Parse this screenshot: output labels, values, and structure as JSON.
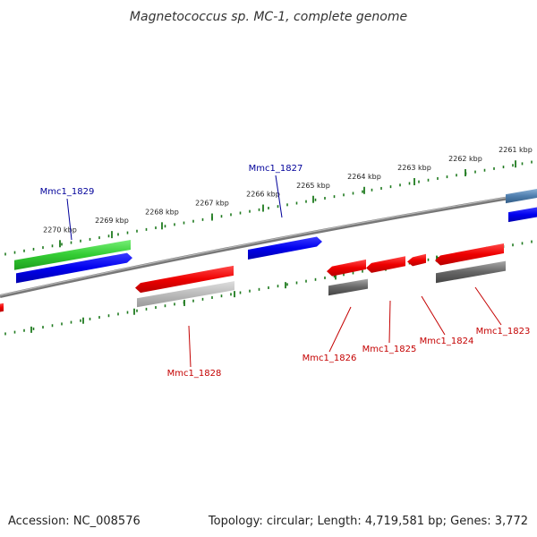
{
  "title": "Magnetococcus sp. MC-1, complete genome",
  "footer": {
    "accession": "Accession: NC_008576",
    "summary": "Topology: circular; Length: 4,719,581 bp; Genes: 3,772"
  },
  "colors": {
    "forward_gene": "#0000ee",
    "reverse_gene": "#ee0000",
    "label_forward": "#00009a",
    "label_reverse": "#c40000",
    "backbone": "#777777",
    "tick": "#1e7a1e"
  },
  "kbp_ticks": [
    "2270 kbp",
    "2269 kbp",
    "2268 kbp",
    "2267 kbp",
    "2266 kbp",
    "2265 kbp",
    "2264 kbp",
    "2263 kbp",
    "2262 kbp",
    "2261 kbp"
  ],
  "gene_labels": [
    {
      "text": "Mmc1_1829",
      "strand": "forward"
    },
    {
      "text": "Mmc1_1827",
      "strand": "forward"
    },
    {
      "text": "Mmc1_1828",
      "strand": "reverse"
    },
    {
      "text": "Mmc1_1826",
      "strand": "reverse"
    },
    {
      "text": "Mmc1_1825",
      "strand": "reverse"
    },
    {
      "text": "Mmc1_1824",
      "strand": "reverse"
    },
    {
      "text": "Mmc1_1823",
      "strand": "reverse"
    }
  ]
}
